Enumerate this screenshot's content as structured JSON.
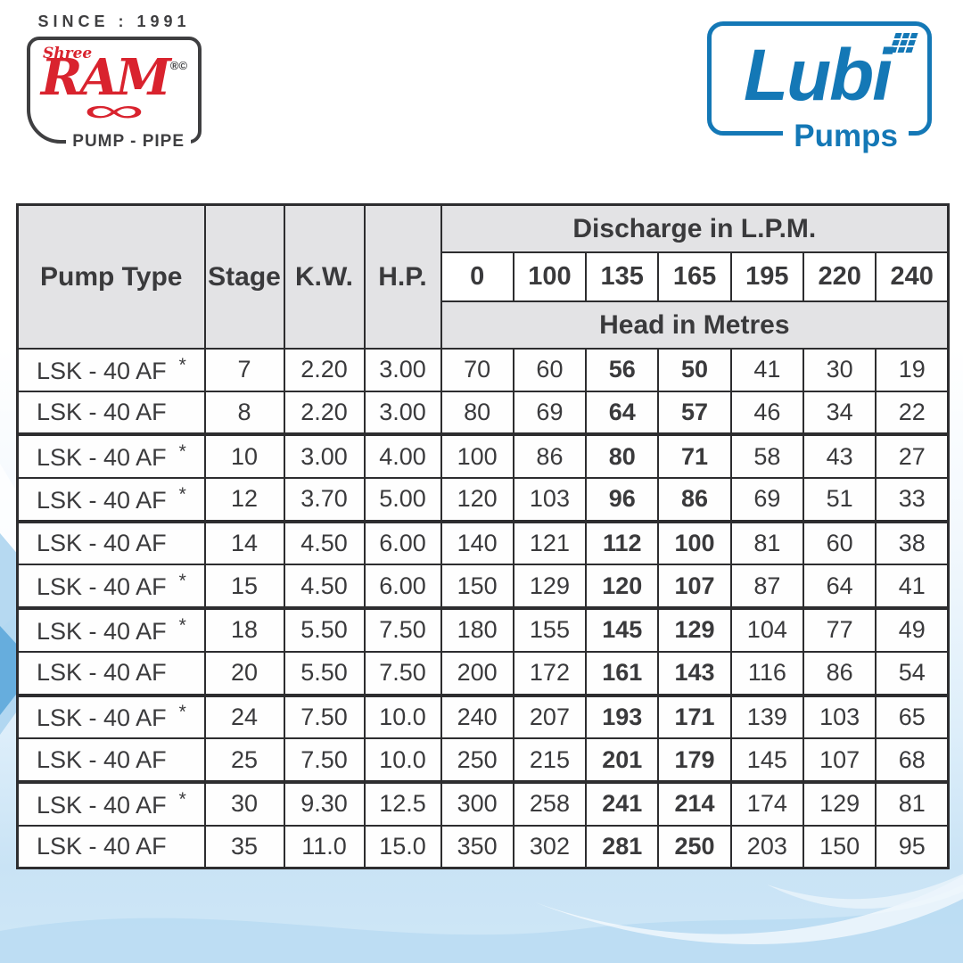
{
  "logo_ram": {
    "since": "SINCE : 1991",
    "shree": "Shree",
    "brand": "RAM",
    "reg_marks": "®©",
    "tagline": "PUMP - PIPE",
    "red": "#d9232e",
    "dark": "#3f3f41"
  },
  "logo_lubi": {
    "brand": "Lubi",
    "tagline": "Pumps",
    "blue": "#1478b6"
  },
  "table": {
    "col_pump_type": "Pump Type",
    "col_stage": "Stage",
    "col_kw": "K.W.",
    "col_hp": "H.P.",
    "discharge_title": "Discharge in L.P.M.",
    "head_title": "Head in Metres",
    "discharge_values": [
      "0",
      "100",
      "135",
      "165",
      "195",
      "220",
      "240"
    ],
    "bold_value_columns": [
      2,
      3
    ],
    "rows": [
      {
        "pump": "LSK - 40 AF",
        "star": true,
        "stage": "7",
        "kw": "2.20",
        "hp": "3.00",
        "values": [
          "70",
          "60",
          "56",
          "50",
          "41",
          "30",
          "19"
        ]
      },
      {
        "pump": "LSK - 40 AF",
        "star": false,
        "stage": "8",
        "kw": "2.20",
        "hp": "3.00",
        "values": [
          "80",
          "69",
          "64",
          "57",
          "46",
          "34",
          "22"
        ]
      },
      {
        "pump": "LSK - 40 AF",
        "star": true,
        "stage": "10",
        "kw": "3.00",
        "hp": "4.00",
        "values": [
          "100",
          "86",
          "80",
          "71",
          "58",
          "43",
          "27"
        ]
      },
      {
        "pump": "LSK - 40 AF",
        "star": true,
        "stage": "12",
        "kw": "3.70",
        "hp": "5.00",
        "values": [
          "120",
          "103",
          "96",
          "86",
          "69",
          "51",
          "33"
        ]
      },
      {
        "pump": "LSK - 40 AF",
        "star": false,
        "stage": "14",
        "kw": "4.50",
        "hp": "6.00",
        "values": [
          "140",
          "121",
          "112",
          "100",
          "81",
          "60",
          "38"
        ]
      },
      {
        "pump": "LSK - 40 AF",
        "star": true,
        "stage": "15",
        "kw": "4.50",
        "hp": "6.00",
        "values": [
          "150",
          "129",
          "120",
          "107",
          "87",
          "64",
          "41"
        ]
      },
      {
        "pump": "LSK - 40 AF",
        "star": true,
        "stage": "18",
        "kw": "5.50",
        "hp": "7.50",
        "values": [
          "180",
          "155",
          "145",
          "129",
          "104",
          "77",
          "49"
        ]
      },
      {
        "pump": "LSK - 40 AF",
        "star": false,
        "stage": "20",
        "kw": "5.50",
        "hp": "7.50",
        "values": [
          "200",
          "172",
          "161",
          "143",
          "116",
          "86",
          "54"
        ]
      },
      {
        "pump": "LSK - 40 AF",
        "star": true,
        "stage": "24",
        "kw": "7.50",
        "hp": "10.0",
        "values": [
          "240",
          "207",
          "193",
          "171",
          "139",
          "103",
          "65"
        ]
      },
      {
        "pump": "LSK - 40 AF",
        "star": false,
        "stage": "25",
        "kw": "7.50",
        "hp": "10.0",
        "values": [
          "250",
          "215",
          "201",
          "179",
          "145",
          "107",
          "68"
        ]
      },
      {
        "pump": "LSK - 40 AF",
        "star": true,
        "stage": "30",
        "kw": "9.30",
        "hp": "12.5",
        "values": [
          "300",
          "258",
          "241",
          "214",
          "174",
          "129",
          "81"
        ]
      },
      {
        "pump": "LSK - 40 AF",
        "star": false,
        "stage": "35",
        "kw": "11.0",
        "hp": "15.0",
        "values": [
          "350",
          "302",
          "281",
          "250",
          "203",
          "150",
          "95"
        ]
      }
    ]
  },
  "chart_data": {
    "type": "table",
    "title": "Discharge in L.P.M. vs Head in Metres",
    "columns": [
      "Pump Type",
      "Stage",
      "K.W.",
      "H.P.",
      "0",
      "100",
      "135",
      "165",
      "195",
      "220",
      "240"
    ],
    "rows": [
      [
        "LSK - 40 AF *",
        7,
        2.2,
        3.0,
        70,
        60,
        56,
        50,
        41,
        30,
        19
      ],
      [
        "LSK - 40 AF",
        8,
        2.2,
        3.0,
        80,
        69,
        64,
        57,
        46,
        34,
        22
      ],
      [
        "LSK - 40 AF *",
        10,
        3.0,
        4.0,
        100,
        86,
        80,
        71,
        58,
        43,
        27
      ],
      [
        "LSK - 40 AF *",
        12,
        3.7,
        5.0,
        120,
        103,
        96,
        86,
        69,
        51,
        33
      ],
      [
        "LSK - 40 AF",
        14,
        4.5,
        6.0,
        140,
        121,
        112,
        100,
        81,
        60,
        38
      ],
      [
        "LSK - 40 AF *",
        15,
        4.5,
        6.0,
        150,
        129,
        120,
        107,
        87,
        64,
        41
      ],
      [
        "LSK - 40 AF *",
        18,
        5.5,
        7.5,
        180,
        155,
        145,
        129,
        104,
        77,
        49
      ],
      [
        "LSK - 40 AF",
        20,
        5.5,
        7.5,
        200,
        172,
        161,
        143,
        116,
        86,
        54
      ],
      [
        "LSK - 40 AF *",
        24,
        7.5,
        10.0,
        240,
        207,
        193,
        171,
        139,
        103,
        65
      ],
      [
        "LSK - 40 AF",
        25,
        7.5,
        10.0,
        250,
        215,
        201,
        179,
        145,
        107,
        68
      ],
      [
        "LSK - 40 AF *",
        30,
        9.3,
        12.5,
        300,
        258,
        241,
        214,
        174,
        129,
        81
      ],
      [
        "LSK - 40 AF",
        35,
        11.0,
        15.0,
        350,
        302,
        281,
        250,
        203,
        150,
        95
      ]
    ]
  }
}
